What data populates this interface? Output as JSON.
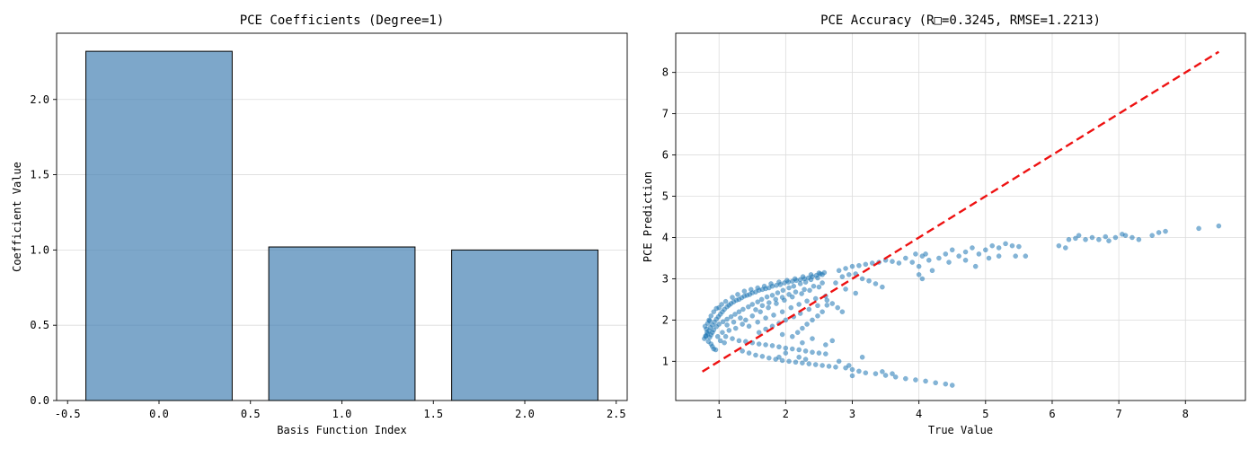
{
  "chart_data": [
    {
      "type": "bar",
      "title": "PCE Coefficients (Degree=1)",
      "xlabel": "Basis Function Index",
      "ylabel": "Coefficient Value",
      "x": [
        0,
        1,
        2
      ],
      "values": [
        2.32,
        1.02,
        1.0
      ],
      "bar_width": 0.8,
      "xlim": [
        -0.56,
        2.56
      ],
      "ylim": [
        0,
        2.44
      ],
      "xticks": [
        -0.5,
        0.0,
        0.5,
        1.0,
        1.5,
        2.0,
        2.5
      ],
      "xtick_labels": [
        "-0.5",
        "0.0",
        "0.5",
        "1.0",
        "1.5",
        "2.0",
        "2.5"
      ],
      "yticks": [
        0.0,
        0.5,
        1.0,
        1.5,
        2.0
      ],
      "ytick_labels": [
        "0.0",
        "0.5",
        "1.0",
        "1.5",
        "2.0"
      ],
      "grid": true,
      "bar_color": "#4682b4",
      "edge_color": "#000000"
    },
    {
      "type": "scatter",
      "title": "PCE Accuracy (R□=0.3245, RMSE=1.2213)",
      "xlabel": "True Value",
      "ylabel": "PCE Prediction",
      "xlim": [
        0.35,
        8.9
      ],
      "ylim": [
        0.05,
        8.95
      ],
      "xticks": [
        1,
        2,
        3,
        4,
        5,
        6,
        7,
        8
      ],
      "xtick_labels": [
        "1",
        "2",
        "3",
        "4",
        "5",
        "6",
        "7",
        "8"
      ],
      "yticks": [
        1,
        2,
        3,
        4,
        5,
        6,
        7,
        8
      ],
      "ytick_labels": [
        "1",
        "2",
        "3",
        "4",
        "5",
        "6",
        "7",
        "8"
      ],
      "grid": true,
      "point_color": "#1f77b4",
      "reference_line": {
        "from": [
          0.75,
          0.75
        ],
        "to": [
          8.5,
          8.5
        ],
        "color": "#ee1111",
        "style": "dashed"
      },
      "points": [
        [
          0.78,
          1.55
        ],
        [
          0.8,
          1.62
        ],
        [
          0.82,
          1.7
        ],
        [
          0.81,
          1.78
        ],
        [
          0.79,
          1.85
        ],
        [
          0.83,
          1.92
        ],
        [
          0.86,
          1.98
        ],
        [
          0.84,
          1.48
        ],
        [
          0.88,
          1.42
        ],
        [
          0.9,
          1.36
        ],
        [
          0.92,
          1.3
        ],
        [
          0.95,
          1.28
        ],
        [
          0.8,
          1.6
        ],
        [
          0.83,
          1.66
        ],
        [
          0.85,
          1.74
        ],
        [
          0.87,
          1.82
        ],
        [
          0.9,
          1.88
        ],
        [
          0.93,
          1.95
        ],
        [
          0.96,
          2.02
        ],
        [
          0.99,
          2.08
        ],
        [
          1.02,
          2.14
        ],
        [
          1.05,
          2.2
        ],
        [
          1.08,
          2.26
        ],
        [
          1.12,
          2.32
        ],
        [
          1.15,
          2.36
        ],
        [
          1.18,
          2.4
        ],
        [
          1.22,
          2.44
        ],
        [
          1.26,
          2.48
        ],
        [
          1.3,
          2.5
        ],
        [
          1.34,
          2.54
        ],
        [
          1.38,
          2.58
        ],
        [
          1.42,
          2.6
        ],
        [
          1.46,
          2.62
        ],
        [
          1.5,
          2.66
        ],
        [
          1.55,
          2.68
        ],
        [
          1.6,
          2.72
        ],
        [
          1.65,
          2.74
        ],
        [
          1.7,
          2.76
        ],
        [
          1.75,
          2.78
        ],
        [
          1.8,
          2.82
        ],
        [
          1.86,
          2.84
        ],
        [
          1.92,
          2.86
        ],
        [
          1.98,
          2.9
        ],
        [
          2.04,
          2.92
        ],
        [
          2.1,
          2.94
        ],
        [
          2.16,
          2.96
        ],
        [
          2.22,
          2.98
        ],
        [
          2.28,
          3.0
        ],
        [
          2.34,
          3.02
        ],
        [
          2.4,
          3.05
        ],
        [
          2.46,
          3.08
        ],
        [
          2.52,
          3.12
        ],
        [
          2.58,
          3.15
        ],
        [
          2.55,
          3.1
        ],
        [
          2.48,
          3.02
        ],
        [
          2.38,
          2.98
        ],
        [
          2.3,
          2.92
        ],
        [
          2.22,
          2.88
        ],
        [
          2.12,
          2.82
        ],
        [
          2.05,
          2.78
        ],
        [
          1.96,
          2.72
        ],
        [
          1.88,
          2.66
        ],
        [
          1.8,
          2.6
        ],
        [
          1.72,
          2.56
        ],
        [
          1.64,
          2.5
        ],
        [
          1.58,
          2.44
        ],
        [
          1.5,
          2.38
        ],
        [
          1.44,
          2.32
        ],
        [
          1.36,
          2.26
        ],
        [
          1.3,
          2.2
        ],
        [
          1.24,
          2.14
        ],
        [
          1.18,
          2.08
        ],
        [
          1.12,
          2.02
        ],
        [
          1.06,
          1.96
        ],
        [
          1.0,
          1.9
        ],
        [
          0.96,
          1.84
        ],
        [
          0.92,
          1.76
        ],
        [
          0.9,
          1.7
        ],
        [
          0.88,
          1.64
        ],
        [
          0.86,
          1.58
        ],
        [
          1.4,
          2.0
        ],
        [
          1.5,
          2.1
        ],
        [
          1.62,
          2.2
        ],
        [
          1.74,
          2.3
        ],
        [
          1.86,
          2.4
        ],
        [
          1.98,
          2.48
        ],
        [
          2.1,
          2.56
        ],
        [
          2.24,
          2.64
        ],
        [
          2.36,
          2.72
        ],
        [
          2.5,
          2.8
        ],
        [
          1.45,
          1.85
        ],
        [
          1.58,
          1.95
        ],
        [
          1.7,
          2.05
        ],
        [
          1.82,
          2.12
        ],
        [
          1.95,
          2.2
        ],
        [
          2.08,
          2.3
        ],
        [
          2.2,
          2.38
        ],
        [
          2.32,
          2.46
        ],
        [
          2.45,
          2.52
        ],
        [
          2.6,
          2.58
        ],
        [
          2.7,
          2.4
        ],
        [
          2.78,
          2.3
        ],
        [
          2.85,
          2.2
        ],
        [
          2.62,
          2.36
        ],
        [
          2.55,
          2.2
        ],
        [
          2.48,
          2.1
        ],
        [
          2.4,
          2.0
        ],
        [
          2.32,
          1.9
        ],
        [
          2.25,
          1.8
        ],
        [
          2.18,
          1.7
        ],
        [
          1.1,
          1.6
        ],
        [
          1.2,
          1.55
        ],
        [
          1.3,
          1.5
        ],
        [
          1.4,
          1.48
        ],
        [
          1.5,
          1.45
        ],
        [
          1.6,
          1.42
        ],
        [
          1.7,
          1.4
        ],
        [
          1.8,
          1.38
        ],
        [
          1.9,
          1.35
        ],
        [
          2.0,
          1.32
        ],
        [
          2.1,
          1.3
        ],
        [
          2.2,
          1.28
        ],
        [
          2.3,
          1.25
        ],
        [
          2.4,
          1.22
        ],
        [
          2.5,
          1.2
        ],
        [
          2.6,
          1.18
        ],
        [
          1.35,
          1.25
        ],
        [
          1.45,
          1.2
        ],
        [
          1.55,
          1.15
        ],
        [
          1.65,
          1.12
        ],
        [
          1.75,
          1.08
        ],
        [
          1.85,
          1.05
        ],
        [
          1.95,
          1.02
        ],
        [
          2.05,
          1.0
        ],
        [
          2.15,
          0.98
        ],
        [
          2.25,
          0.96
        ],
        [
          2.35,
          0.94
        ],
        [
          2.45,
          0.92
        ],
        [
          2.55,
          0.9
        ],
        [
          2.65,
          0.88
        ],
        [
          2.75,
          0.86
        ],
        [
          2.9,
          0.84
        ],
        [
          3.0,
          0.8
        ],
        [
          3.1,
          0.76
        ],
        [
          3.2,
          0.72
        ],
        [
          3.35,
          0.7
        ],
        [
          3.5,
          0.66
        ],
        [
          3.65,
          0.62
        ],
        [
          3.8,
          0.58
        ],
        [
          3.95,
          0.55
        ],
        [
          4.1,
          0.52
        ],
        [
          4.25,
          0.48
        ],
        [
          4.4,
          0.45
        ],
        [
          4.5,
          0.42
        ],
        [
          3.0,
          0.65
        ],
        [
          3.45,
          0.75
        ],
        [
          3.6,
          0.7
        ],
        [
          2.95,
          0.9
        ],
        [
          3.15,
          1.1
        ],
        [
          2.8,
          1.0
        ],
        [
          2.2,
          1.1
        ],
        [
          2.0,
          1.2
        ],
        [
          1.9,
          1.1
        ],
        [
          2.3,
          1.05
        ],
        [
          2.6,
          1.4
        ],
        [
          2.7,
          1.5
        ],
        [
          2.4,
          1.55
        ],
        [
          2.1,
          1.6
        ],
        [
          1.95,
          1.65
        ],
        [
          2.25,
          1.45
        ],
        [
          2.8,
          3.2
        ],
        [
          2.9,
          3.25
        ],
        [
          3.0,
          3.3
        ],
        [
          3.1,
          3.32
        ],
        [
          3.2,
          3.35
        ],
        [
          3.3,
          3.38
        ],
        [
          3.4,
          3.4
        ],
        [
          3.5,
          3.45
        ],
        [
          3.6,
          3.42
        ],
        [
          3.7,
          3.38
        ],
        [
          2.85,
          3.05
        ],
        [
          2.95,
          3.1
        ],
        [
          3.05,
          3.12
        ],
        [
          3.15,
          3.0
        ],
        [
          3.25,
          2.95
        ],
        [
          3.35,
          2.88
        ],
        [
          3.45,
          2.8
        ],
        [
          2.75,
          2.9
        ],
        [
          2.9,
          2.75
        ],
        [
          3.05,
          2.65
        ],
        [
          3.8,
          3.5
        ],
        [
          3.9,
          3.4
        ],
        [
          4.0,
          3.3
        ],
        [
          4.05,
          3.55
        ],
        [
          4.1,
          3.6
        ],
        [
          4.15,
          3.45
        ],
        [
          4.2,
          3.2
        ],
        [
          4.0,
          3.1
        ],
        [
          3.95,
          3.6
        ],
        [
          4.3,
          3.5
        ],
        [
          4.4,
          3.6
        ],
        [
          4.5,
          3.7
        ],
        [
          4.6,
          3.55
        ],
        [
          4.7,
          3.65
        ],
        [
          4.8,
          3.75
        ],
        [
          4.9,
          3.6
        ],
        [
          5.0,
          3.7
        ],
        [
          5.1,
          3.8
        ],
        [
          5.2,
          3.75
        ],
        [
          5.3,
          3.85
        ],
        [
          5.4,
          3.8
        ],
        [
          5.5,
          3.78
        ],
        [
          4.05,
          3.0
        ],
        [
          4.45,
          3.4
        ],
        [
          4.7,
          3.45
        ],
        [
          5.05,
          3.5
        ],
        [
          5.2,
          3.55
        ],
        [
          5.45,
          3.55
        ],
        [
          5.6,
          3.55
        ],
        [
          4.85,
          3.3
        ],
        [
          6.1,
          3.8
        ],
        [
          6.2,
          3.75
        ],
        [
          6.25,
          3.95
        ],
        [
          6.35,
          3.98
        ],
        [
          6.5,
          3.95
        ],
        [
          6.6,
          4.0
        ],
        [
          6.7,
          3.95
        ],
        [
          6.8,
          4.02
        ],
        [
          6.95,
          4.0
        ],
        [
          7.1,
          4.05
        ],
        [
          7.2,
          4.0
        ],
        [
          7.3,
          3.95
        ],
        [
          7.5,
          4.05
        ],
        [
          7.6,
          4.12
        ],
        [
          7.7,
          4.15
        ],
        [
          8.2,
          4.22
        ],
        [
          8.5,
          4.28
        ],
        [
          6.4,
          4.05
        ],
        [
          6.85,
          3.92
        ],
        [
          7.05,
          4.08
        ],
        [
          1.0,
          2.3
        ],
        [
          1.1,
          2.45
        ],
        [
          1.2,
          2.55
        ],
        [
          1.28,
          2.62
        ],
        [
          1.38,
          2.7
        ],
        [
          1.48,
          2.74
        ],
        [
          1.58,
          2.78
        ],
        [
          1.68,
          2.82
        ],
        [
          1.78,
          2.88
        ],
        [
          1.9,
          2.92
        ],
        [
          2.02,
          2.96
        ],
        [
          2.14,
          3.0
        ],
        [
          2.26,
          3.05
        ],
        [
          2.38,
          3.1
        ],
        [
          2.5,
          3.14
        ],
        [
          0.85,
          2.0
        ],
        [
          0.88,
          2.1
        ],
        [
          0.92,
          2.2
        ],
        [
          0.96,
          2.28
        ],
        [
          1.04,
          2.38
        ],
        [
          1.15,
          1.75
        ],
        [
          1.25,
          1.8
        ],
        [
          1.35,
          1.9
        ],
        [
          1.32,
          2.05
        ],
        [
          1.22,
          1.95
        ],
        [
          1.12,
          1.88
        ],
        [
          1.05,
          1.7
        ],
        [
          0.98,
          1.6
        ],
        [
          1.02,
          1.5
        ],
        [
          1.08,
          1.45
        ],
        [
          1.55,
          2.25
        ],
        [
          1.65,
          2.35
        ],
        [
          1.75,
          2.42
        ],
        [
          1.85,
          2.5
        ],
        [
          1.95,
          2.55
        ],
        [
          2.05,
          2.62
        ],
        [
          2.15,
          2.68
        ],
        [
          2.28,
          2.74
        ],
        [
          2.42,
          2.82
        ],
        [
          2.55,
          2.9
        ],
        [
          1.6,
          1.7
        ],
        [
          1.7,
          1.78
        ],
        [
          1.8,
          1.85
        ],
        [
          1.9,
          1.92
        ],
        [
          2.0,
          2.0
        ],
        [
          2.12,
          2.08
        ],
        [
          2.22,
          2.16
        ],
        [
          2.35,
          2.26
        ],
        [
          2.48,
          2.35
        ],
        [
          2.62,
          2.48
        ]
      ]
    }
  ]
}
